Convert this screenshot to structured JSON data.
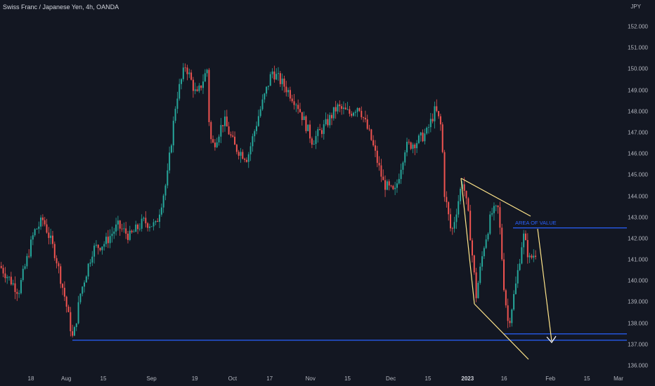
{
  "chart_data": {
    "type": "candlestick",
    "title": "Swiss Franc / Japanese Yen, 4h, OANDA",
    "unit": "JPY",
    "ylim": [
      135.7,
      152.9
    ],
    "y_ticks": [
      "152.000",
      "151.000",
      "150.000",
      "149.000",
      "148.000",
      "147.000",
      "146.000",
      "145.000",
      "144.000",
      "143.000",
      "142.000",
      "141.000",
      "140.000",
      "139.000",
      "138.000",
      "137.000",
      "136.000"
    ],
    "x_ticks": [
      {
        "label": "18",
        "pos": 0.05
      },
      {
        "label": "Aug",
        "pos": 0.107
      },
      {
        "label": "15",
        "pos": 0.167
      },
      {
        "label": "Sep",
        "pos": 0.245
      },
      {
        "label": "19",
        "pos": 0.315
      },
      {
        "label": "Oct",
        "pos": 0.376
      },
      {
        "label": "17",
        "pos": 0.436
      },
      {
        "label": "Nov",
        "pos": 0.502
      },
      {
        "label": "15",
        "pos": 0.562
      },
      {
        "label": "Dec",
        "pos": 0.632
      },
      {
        "label": "15",
        "pos": 0.692
      },
      {
        "label": "2023",
        "pos": 0.756,
        "major": true
      },
      {
        "label": "16",
        "pos": 0.815
      },
      {
        "label": "Feb",
        "pos": 0.89
      },
      {
        "label": "15",
        "pos": 0.949
      },
      {
        "label": "Mar",
        "pos": 1.0
      }
    ],
    "up_color": "#26a69a",
    "down_color": "#ef5350",
    "price_path": [
      {
        "t": 0.0,
        "p": 140.7
      },
      {
        "t": 0.03,
        "p": 139.5
      },
      {
        "t": 0.055,
        "p": 142.3
      },
      {
        "t": 0.07,
        "p": 142.9
      },
      {
        "t": 0.09,
        "p": 141.2
      },
      {
        "t": 0.105,
        "p": 139.2
      },
      {
        "t": 0.118,
        "p": 137.2
      },
      {
        "t": 0.13,
        "p": 139.4
      },
      {
        "t": 0.15,
        "p": 141.5
      },
      {
        "t": 0.17,
        "p": 141.8
      },
      {
        "t": 0.19,
        "p": 142.6
      },
      {
        "t": 0.21,
        "p": 142.1
      },
      {
        "t": 0.232,
        "p": 142.8
      },
      {
        "t": 0.252,
        "p": 142.6
      },
      {
        "t": 0.27,
        "p": 144.8
      },
      {
        "t": 0.285,
        "p": 148.6
      },
      {
        "t": 0.3,
        "p": 150.2
      },
      {
        "t": 0.318,
        "p": 148.7
      },
      {
        "t": 0.335,
        "p": 150.0
      },
      {
        "t": 0.339,
        "p": 146.8
      },
      {
        "t": 0.345,
        "p": 146.4
      },
      {
        "t": 0.362,
        "p": 147.6
      },
      {
        "t": 0.38,
        "p": 146.3
      },
      {
        "t": 0.4,
        "p": 145.8
      },
      {
        "t": 0.418,
        "p": 147.8
      },
      {
        "t": 0.44,
        "p": 149.9
      },
      {
        "t": 0.46,
        "p": 149.2
      },
      {
        "t": 0.48,
        "p": 148.4
      },
      {
        "t": 0.505,
        "p": 146.6
      },
      {
        "t": 0.525,
        "p": 147.3
      },
      {
        "t": 0.545,
        "p": 148.2
      },
      {
        "t": 0.565,
        "p": 147.9
      },
      {
        "t": 0.58,
        "p": 148.3
      },
      {
        "t": 0.6,
        "p": 146.7
      },
      {
        "t": 0.62,
        "p": 144.6
      },
      {
        "t": 0.638,
        "p": 144.1
      },
      {
        "t": 0.655,
        "p": 146.3
      },
      {
        "t": 0.675,
        "p": 146.6
      },
      {
        "t": 0.69,
        "p": 147.0
      },
      {
        "t": 0.704,
        "p": 148.1
      },
      {
        "t": 0.714,
        "p": 147.2
      },
      {
        "t": 0.718,
        "p": 144.3
      },
      {
        "t": 0.73,
        "p": 142.2
      },
      {
        "t": 0.748,
        "p": 144.8
      },
      {
        "t": 0.758,
        "p": 142.9
      },
      {
        "t": 0.77,
        "p": 139.3
      },
      {
        "t": 0.782,
        "p": 141.6
      },
      {
        "t": 0.795,
        "p": 143.2
      },
      {
        "t": 0.806,
        "p": 143.4
      },
      {
        "t": 0.815,
        "p": 139.7
      },
      {
        "t": 0.822,
        "p": 137.9
      },
      {
        "t": 0.834,
        "p": 139.8
      },
      {
        "t": 0.846,
        "p": 142.2
      },
      {
        "t": 0.856,
        "p": 141.0
      },
      {
        "t": 0.868,
        "p": 141.4
      }
    ],
    "annotations": {
      "support_level": 137.2,
      "area_of_value": {
        "label": "AREA OF VALUE",
        "level": 142.5
      },
      "target_zone": [
        137.2,
        137.5
      ]
    }
  }
}
